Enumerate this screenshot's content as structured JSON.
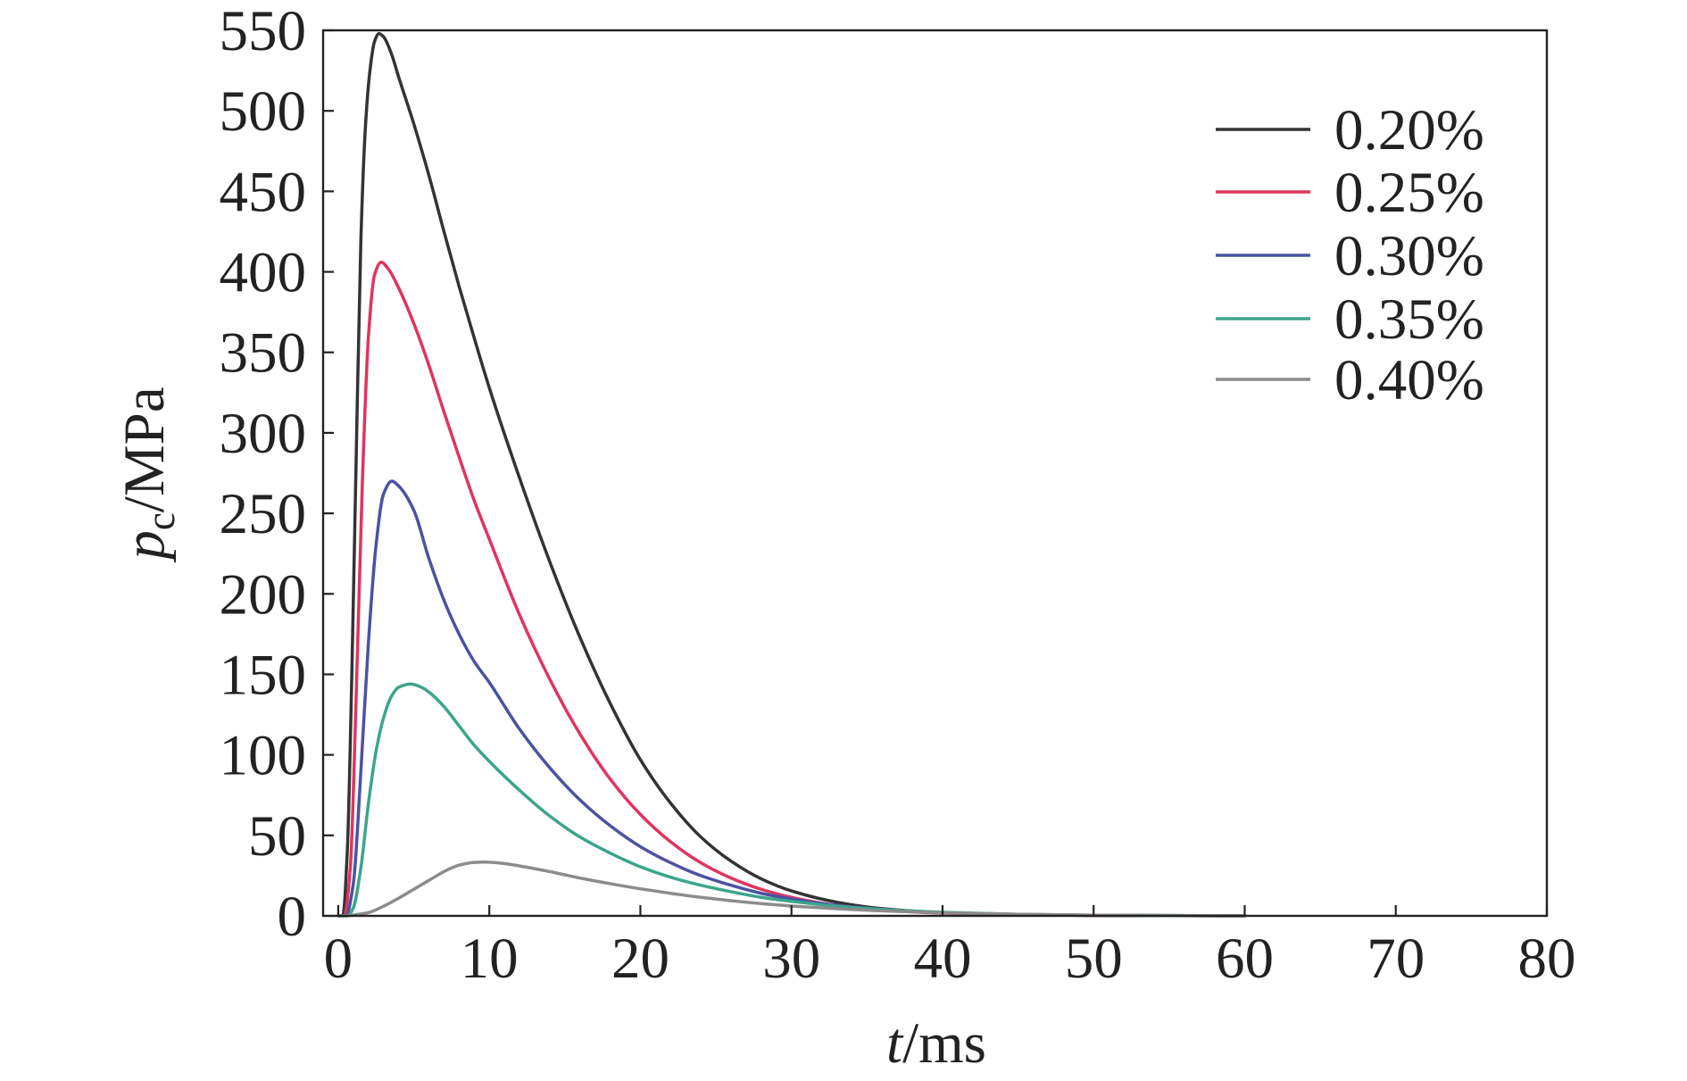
{
  "chart_data": {
    "type": "line",
    "xlabel": {
      "symbol": "t",
      "unit": "/ms"
    },
    "ylabel": {
      "symbol": "p",
      "subscript": "c",
      "unit": "/MPa"
    },
    "xlim": [
      -1,
      80
    ],
    "ylim": [
      0,
      550
    ],
    "x_ticks": [
      0,
      10,
      20,
      30,
      40,
      50,
      60,
      70,
      80
    ],
    "y_ticks": [
      0,
      50,
      100,
      150,
      200,
      250,
      300,
      350,
      400,
      450,
      500,
      550
    ],
    "grid": false,
    "legend": "top-right",
    "series": [
      {
        "name": "0.20%",
        "color": "#333333",
        "x": [
          0,
          0.3,
          0.6,
          0.9,
          1.2,
          1.5,
          1.8,
          2.1,
          2.4,
          2.7,
          3.0,
          3.5,
          4,
          5,
          6,
          7,
          8,
          9,
          10,
          12,
          14,
          16,
          18,
          20,
          22,
          24,
          26,
          28,
          30,
          33,
          36,
          40,
          45,
          50,
          60
        ],
        "y": [
          0,
          0,
          40,
          150,
          290,
          420,
          490,
          525,
          543,
          548,
          546,
          536,
          521,
          492,
          460,
          425,
          391,
          359,
          328,
          272,
          220,
          173,
          132,
          97,
          70,
          49,
          34,
          23,
          15.5,
          8.5,
          4.5,
          2,
          0.8,
          0.3,
          0
        ]
      },
      {
        "name": "0.25%",
        "color": "#e0345e",
        "x": [
          0,
          0.4,
          0.8,
          1.2,
          1.6,
          2.0,
          2.4,
          2.85,
          3.3,
          4,
          5,
          6,
          7,
          8,
          9,
          10,
          12,
          14,
          16,
          18,
          20,
          22,
          24,
          26,
          28,
          30,
          33,
          36,
          40,
          45,
          50,
          60
        ],
        "y": [
          0,
          0,
          30,
          140,
          270,
          360,
          398,
          406,
          402,
          390,
          368,
          342,
          313,
          285,
          258,
          234,
          187,
          147,
          113,
          85,
          63,
          46,
          33,
          23.5,
          16.5,
          11.5,
          6.5,
          3.6,
          1.7,
          0.7,
          0.3,
          0
        ]
      },
      {
        "name": "0.30%",
        "color": "#4b52a2",
        "x": [
          0,
          0.5,
          1.0,
          1.5,
          2.0,
          2.5,
          3.0,
          3.55,
          4.0,
          5,
          6,
          7,
          8,
          9,
          10,
          12,
          14,
          16,
          18,
          20,
          22,
          24,
          26,
          28,
          30,
          33,
          36,
          40,
          45,
          50,
          60
        ],
        "y": [
          0,
          0,
          20,
          90,
          170,
          230,
          262,
          270,
          267,
          252,
          222,
          196,
          175,
          158,
          145,
          116,
          92,
          72,
          56,
          43,
          33,
          25,
          19,
          14,
          10.5,
          6.5,
          4,
          2,
          0.9,
          0.35,
          0
        ]
      },
      {
        "name": "0.35%",
        "color": "#3ca58b",
        "x": [
          0,
          0.6,
          1.0,
          1.5,
          2.0,
          2.5,
          3.0,
          3.5,
          4.0,
          4.8,
          5.5,
          6,
          7,
          8,
          9,
          10,
          12,
          14,
          16,
          18,
          20,
          22,
          24,
          26,
          28,
          30,
          33,
          36,
          40,
          45,
          50,
          60
        ],
        "y": [
          0,
          0,
          5,
          30,
          70,
          102,
          123,
          136,
          142,
          144,
          142,
          139,
          130,
          118,
          106,
          96,
          78,
          62,
          49,
          39,
          30.5,
          24,
          19,
          15,
          11.5,
          9,
          6,
          4,
          2.2,
          1,
          0.45,
          0
        ]
      },
      {
        "name": "0.40%",
        "color": "#8c8c8c",
        "x": [
          0,
          0.5,
          1,
          2,
          3,
          4,
          5,
          6,
          7,
          8,
          9,
          9.6,
          10.5,
          12,
          14,
          16,
          18,
          20,
          22,
          24,
          26,
          28,
          30,
          33,
          36,
          40,
          45,
          50,
          60
        ],
        "y": [
          0,
          0,
          0.5,
          2,
          6,
          11,
          16.5,
          22,
          27.5,
          31.5,
          33.2,
          33.4,
          33,
          31,
          27.5,
          23.5,
          20,
          16.8,
          14,
          11.5,
          9.4,
          7.6,
          6.1,
          4.4,
          3.1,
          1.9,
          1,
          0.45,
          0
        ]
      }
    ]
  }
}
